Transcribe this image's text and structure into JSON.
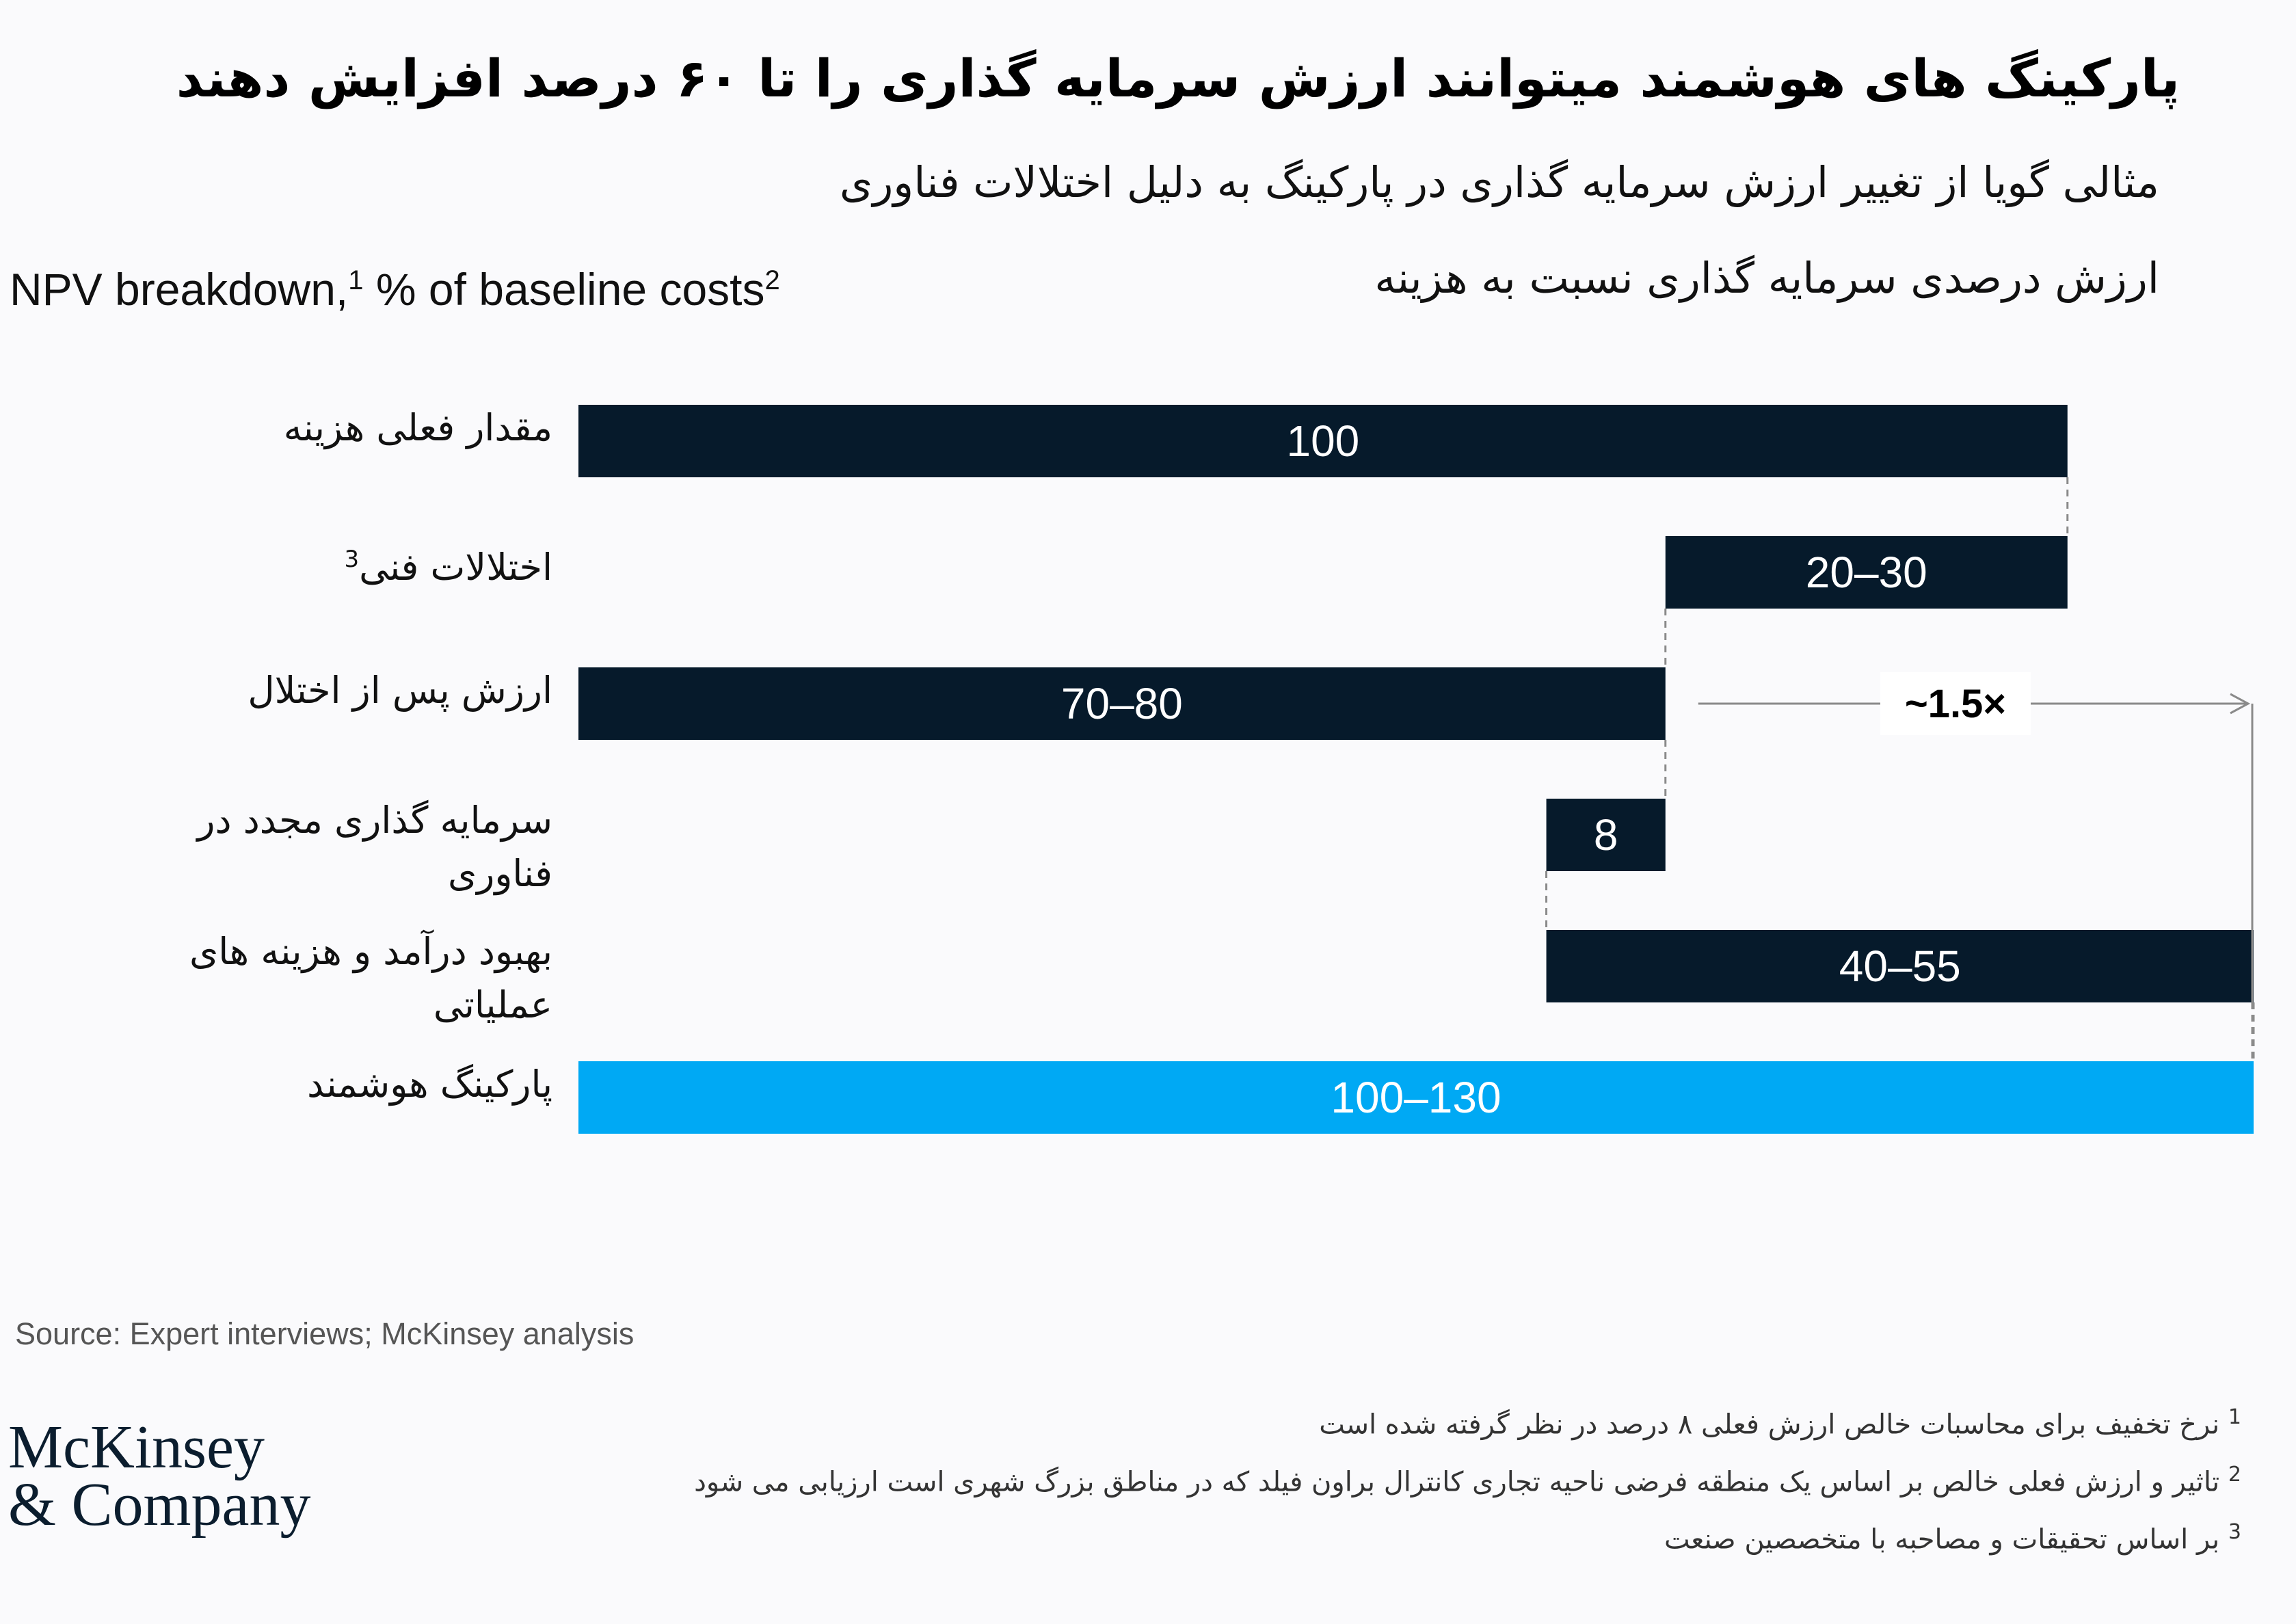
{
  "title": "پارکینگ های هوشمند میتوانند ارزش سرمایه گذاری را تا ۶۰ درصد افزایش دهند",
  "subtitle": "مثالی گویا از تغییر ارزش سرمایه گذاری در پارکینگ به دلیل اختلالات فناوری",
  "unit_fa": "ارزش درصدی سرمایه گذاری نسبت به هزینه",
  "unit_en": {
    "text1": "NPV breakdown,",
    "sup1": "1",
    "text2": " % of baseline costs",
    "sup2": "2"
  },
  "chart_data": {
    "type": "bar",
    "orientation": "horizontal-waterfall",
    "categories": [
      "مقدار فعلی هزینه",
      "اختلالات فنی",
      "ارزش پس از اختلال",
      "سرمایه گذاری مجدد در فناوری",
      "بهبود درآمد و هزینه های عملیاتی",
      "پارکینگ هوشمند"
    ],
    "category_superscripts": [
      "",
      "3",
      "",
      "",
      "",
      ""
    ],
    "bars": [
      {
        "label": "100",
        "start": 0,
        "end": 100
      },
      {
        "label": "20–30",
        "start": 73,
        "end": 100
      },
      {
        "label": "70–80",
        "start": 0,
        "end": 73
      },
      {
        "label": "8",
        "start": 65,
        "end": 73
      },
      {
        "label": "40–55",
        "start": 65,
        "end": 112.5
      },
      {
        "label": "100–130",
        "start": 0,
        "end": 112.5
      }
    ],
    "annotation": "~1.5×",
    "xlim": [
      0,
      112.5
    ],
    "grid": false,
    "colors": {
      "dark": "#061a2b",
      "highlight": "#00a9f4",
      "connector": "#8a8a8a"
    }
  },
  "source": "Source: Expert interviews; McKinsey analysis",
  "logo": {
    "line1": "McKinsey",
    "line2": "& Company"
  },
  "footnotes": [
    {
      "num": "1",
      "text": "نرخ تخفیف برای محاسبات خالص ارزش فعلی ۸ درصد در نظر گرفته شده است"
    },
    {
      "num": "2",
      "text": "تاثیر و ارزش فعلی خالص بر اساس یک منطقه فرضی ناحیه تجاری کانترال براون فیلد که در مناطق بزرگ شهری است  ارزیابی می شود"
    },
    {
      "num": "3",
      "text": "بر اساس تحقیقات و مصاحبه با متخصصین صنعت"
    }
  ]
}
